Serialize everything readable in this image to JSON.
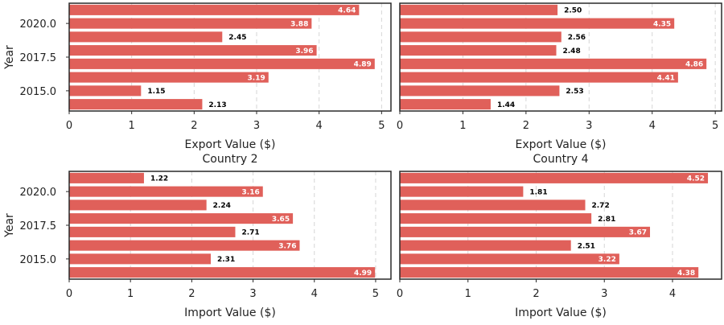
{
  "chart_data": [
    {
      "type": "bar",
      "orientation": "horizontal",
      "title": "",
      "xlabel": "Export Value ($)",
      "ylabel": "Year",
      "xlim": [
        0,
        5.15
      ],
      "xticks": [
        "0",
        "1",
        "2",
        "3",
        "4",
        "5"
      ],
      "yticks": [
        {
          "value": 2015,
          "label": "2015.0"
        },
        {
          "value": 2017.5,
          "label": "2017.5"
        },
        {
          "value": 2020,
          "label": "2020.0"
        }
      ],
      "categories": [
        2014,
        2015,
        2016,
        2017,
        2018,
        2019,
        2020,
        2021
      ],
      "values": [
        2.13,
        1.15,
        3.19,
        4.89,
        3.96,
        2.45,
        3.88,
        4.64
      ],
      "labels": [
        "2.13",
        "1.15",
        "3.19",
        "4.89",
        "3.96",
        "2.45",
        "3.88",
        "4.64"
      ],
      "bar_color": "#e0605a",
      "grid": "x dashed"
    },
    {
      "type": "bar",
      "orientation": "horizontal",
      "title": "",
      "xlabel": "Export Value ($)",
      "ylabel": "",
      "xlim": [
        0,
        5.1
      ],
      "xticks": [
        "0",
        "1",
        "2",
        "3",
        "4",
        "5"
      ],
      "yticks": [],
      "categories": [
        2014,
        2015,
        2016,
        2017,
        2018,
        2019,
        2020,
        2021
      ],
      "values": [
        1.44,
        2.53,
        4.41,
        4.86,
        2.48,
        2.56,
        4.35,
        2.5
      ],
      "labels": [
        "1.44",
        "2.53",
        "4.41",
        "4.86",
        "2.48",
        "2.56",
        "4.35",
        "2.50"
      ],
      "bar_color": "#e0605a",
      "grid": "x dashed"
    },
    {
      "type": "bar",
      "orientation": "horizontal",
      "title": "Country 2",
      "xlabel": "Import Value ($)",
      "ylabel": "Year",
      "xlim": [
        0,
        5.25
      ],
      "xticks": [
        "0",
        "1",
        "2",
        "3",
        "4",
        "5"
      ],
      "yticks": [
        {
          "value": 2015,
          "label": "2015.0"
        },
        {
          "value": 2017.5,
          "label": "2017.5"
        },
        {
          "value": 2020,
          "label": "2020.0"
        }
      ],
      "categories": [
        2014,
        2015,
        2016,
        2017,
        2018,
        2019,
        2020,
        2021
      ],
      "values": [
        4.99,
        2.31,
        3.76,
        2.71,
        3.65,
        2.24,
        3.16,
        1.22
      ],
      "labels": [
        "4.99",
        "2.31",
        "3.76",
        "2.71",
        "3.65",
        "2.24",
        "3.16",
        "1.22"
      ],
      "bar_color": "#e0605a",
      "grid": "x dashed"
    },
    {
      "type": "bar",
      "orientation": "horizontal",
      "title": "Country 4",
      "xlabel": "Import Value ($)",
      "ylabel": "",
      "xlim": [
        0,
        4.72
      ],
      "xticks": [
        "0",
        "1",
        "2",
        "3",
        "4"
      ],
      "yticks": [],
      "categories": [
        2014,
        2015,
        2016,
        2017,
        2018,
        2019,
        2020,
        2021
      ],
      "values": [
        4.38,
        3.22,
        2.51,
        3.67,
        2.81,
        2.72,
        1.81,
        4.52
      ],
      "labels": [
        "4.38",
        "3.22",
        "2.51",
        "3.67",
        "2.81",
        "2.72",
        "1.81",
        "4.52"
      ],
      "bar_color": "#e0605a",
      "grid": "x dashed"
    }
  ]
}
